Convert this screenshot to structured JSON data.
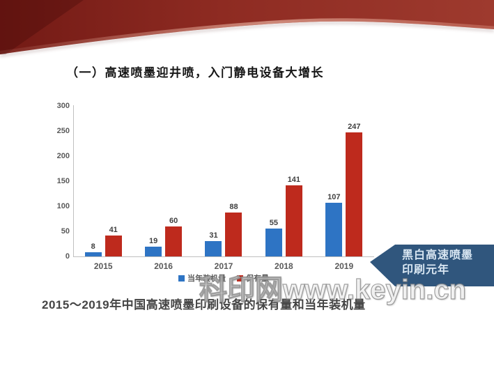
{
  "title": {
    "text": "（一）高速喷墨迎井喷，入门静电设备大增长"
  },
  "chart_data": {
    "type": "bar",
    "title": "",
    "xlabel": "",
    "ylabel": "",
    "categories": [
      "2015",
      "2016",
      "2017",
      "2018",
      "2019"
    ],
    "series": [
      {
        "name": "当年装机量",
        "color": "#2E74C4",
        "values": [
          8,
          19,
          31,
          55,
          107
        ]
      },
      {
        "name": "保有量",
        "color": "#BE2A1D",
        "values": [
          41,
          60,
          88,
          141,
          247
        ]
      }
    ],
    "ylim": [
      0,
      300
    ],
    "yticks": [
      0,
      50,
      100,
      150,
      200,
      250,
      300
    ],
    "grid": false,
    "legend_position": "bottom"
  },
  "banner": {
    "line1": "黑白高速喷墨",
    "line2": "印刷元年",
    "bg_color": "#30567D",
    "text_color": "#D8E6F2"
  },
  "caption": {
    "text": "2015～2019年中国高速喷墨印刷设备的保有量和当年装机量"
  },
  "watermark": {
    "text": "科印网www.keyin.cn"
  },
  "theme": {
    "ribbon_dark": "#731A15",
    "ribbon_mid": "#8E2B22",
    "ribbon_light": "#9E3A2E",
    "axis_color": "#BFBFBF",
    "tick_label_color": "#595959",
    "value_label_color": "#3F3F3F",
    "title_color": "#161616",
    "caption_color": "#454545"
  }
}
